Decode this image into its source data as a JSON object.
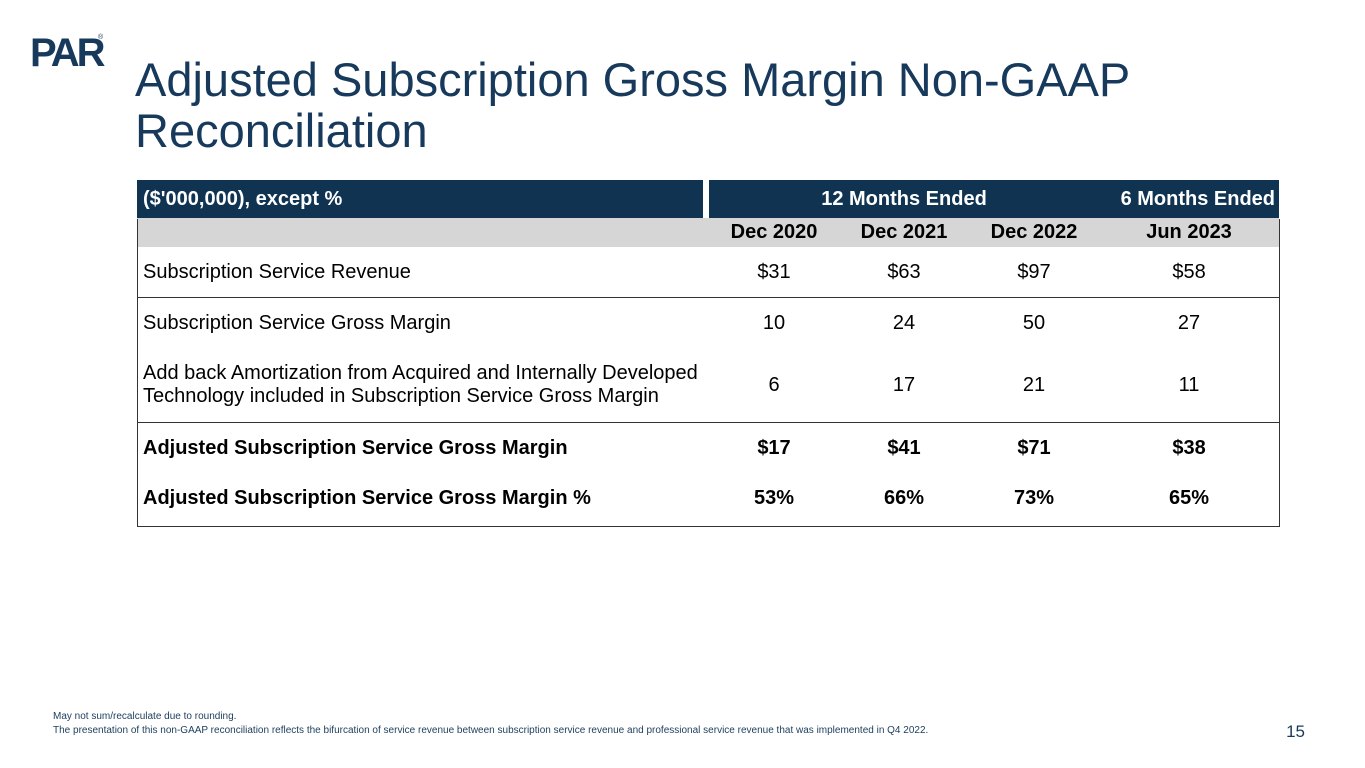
{
  "logo": {
    "text": "PAR",
    "mark": "®"
  },
  "title": "Adjusted Subscription Gross Margin Non-GAAP Reconciliation",
  "table": {
    "unit_label": "($'000,000), except %",
    "group_12": "12 Months Ended",
    "group_6": "6 Months Ended",
    "periods": [
      "Dec 2020",
      "Dec 2021",
      "Dec 2022",
      "Jun 2023"
    ],
    "rows": [
      {
        "label": "Subscription Service Revenue",
        "values": [
          "$31",
          "$63",
          "$97",
          "$58"
        ]
      },
      {
        "label": "Subscription Service Gross Margin",
        "values": [
          "10",
          "24",
          "50",
          "27"
        ]
      },
      {
        "label": "Add back Amortization from Acquired and Internally Developed Technology included in Subscription Service Gross Margin",
        "values": [
          "6",
          "17",
          "21",
          "11"
        ]
      },
      {
        "label": "Adjusted Subscription Service Gross Margin",
        "values": [
          "$17",
          "$41",
          "$71",
          "$38"
        ]
      },
      {
        "label": "Adjusted Subscription Service Gross Margin %",
        "values": [
          "53%",
          "66%",
          "73%",
          "65%"
        ]
      }
    ]
  },
  "footnotes": [
    "May not sum/recalculate due to rounding.",
    "The presentation of this non-GAAP reconciliation reflects the bifurcation of service revenue between subscription service revenue and professional service revenue that was implemented in Q4 2022."
  ],
  "page_number": "15",
  "colors": {
    "brand_navy": "#0f3351",
    "title": "#173a5c",
    "subheader_gray": "#d6d6d6"
  }
}
